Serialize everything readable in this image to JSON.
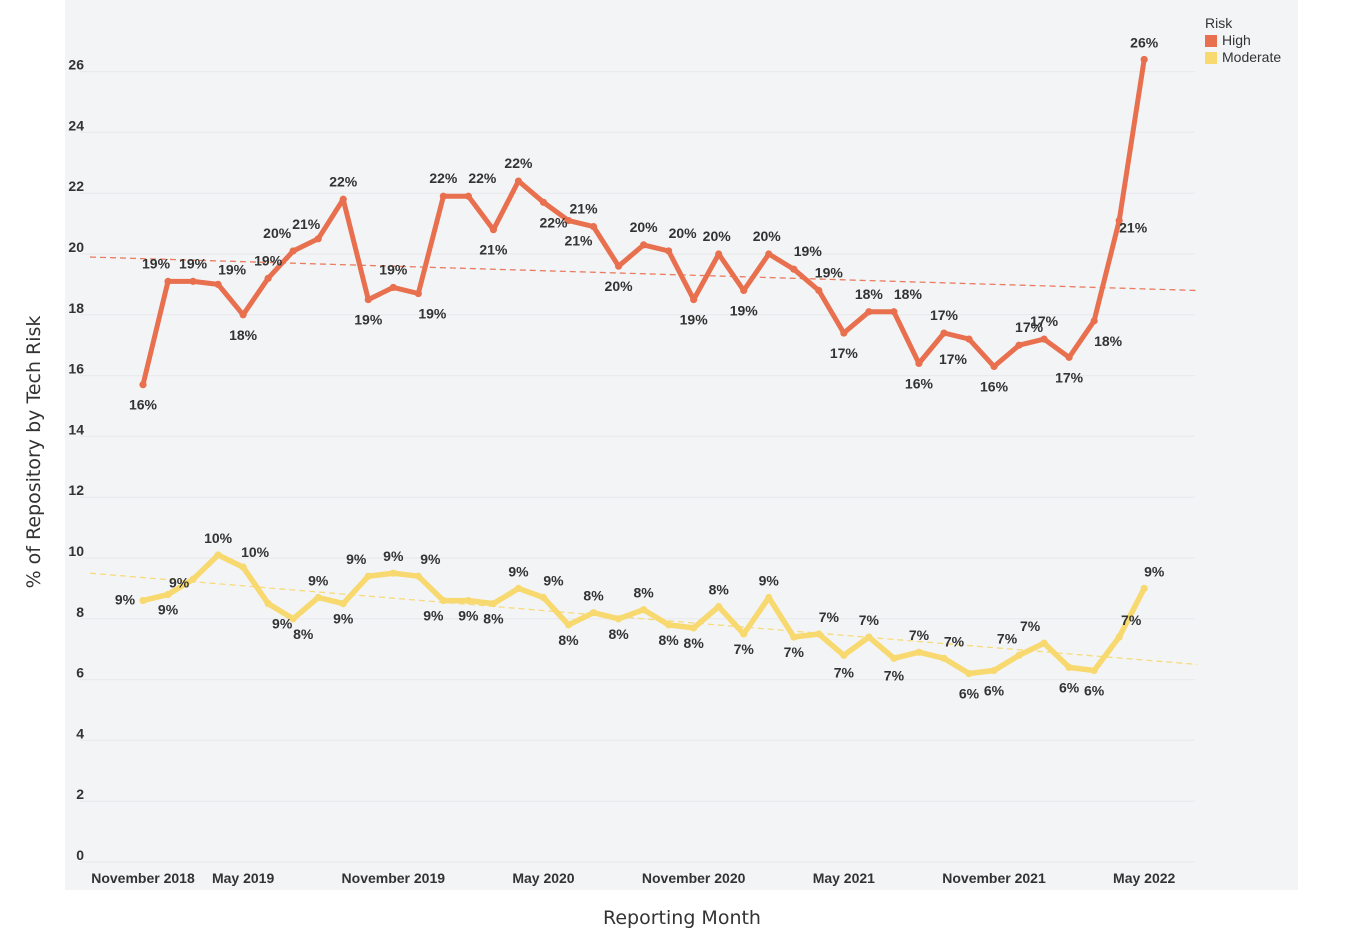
{
  "chart_data": {
    "type": "line",
    "xlabel": "Reporting Month",
    "ylabel": "% of Repository by Tech Risk",
    "ylim": [
      0,
      27
    ],
    "yticks": [
      0,
      2,
      4,
      6,
      8,
      10,
      12,
      14,
      16,
      18,
      20,
      22,
      24,
      26
    ],
    "xtick_labels": [
      {
        "label": "November 2018",
        "index": 0
      },
      {
        "label": "May 2019",
        "index": 4
      },
      {
        "label": "November 2019",
        "index": 10
      },
      {
        "label": "May 2020",
        "index": 16
      },
      {
        "label": "November 2020",
        "index": 22
      },
      {
        "label": "May 2021",
        "index": 28
      },
      {
        "label": "November 2021",
        "index": 34
      },
      {
        "label": "May 2022",
        "index": 40
      }
    ],
    "legend": {
      "title": "Risk",
      "position": "top-right",
      "entries": [
        {
          "name": "High",
          "color": "#e8704f"
        },
        {
          "name": "Moderate",
          "color": "#f7d96f"
        }
      ]
    },
    "series": [
      {
        "name": "High",
        "color": "#e8704f",
        "values": [
          15.7,
          19.1,
          19.1,
          19.0,
          18.0,
          19.2,
          20.1,
          20.5,
          21.8,
          18.5,
          18.9,
          18.7,
          21.9,
          21.9,
          20.8,
          22.4,
          21.7,
          21.1,
          20.9,
          19.6,
          20.3,
          20.1,
          18.5,
          20.0,
          18.8,
          20.0,
          19.5,
          18.8,
          17.4,
          18.1,
          18.1,
          16.4,
          17.4,
          17.2,
          16.3,
          17.0,
          17.2,
          16.6,
          17.8,
          21.1,
          26.4
        ],
        "labels": [
          "16%",
          "19%",
          "19%",
          "19%",
          "18%",
          "19%",
          "20%",
          "21%",
          "22%",
          "19%",
          "19%",
          "19%",
          "22%",
          "22%",
          "21%",
          "22%",
          "22%",
          "21%",
          "21%",
          "20%",
          "20%",
          "20%",
          "19%",
          "20%",
          "19%",
          "20%",
          "19%",
          "19%",
          "17%",
          "18%",
          "18%",
          "16%",
          "17%",
          "17%",
          "16%",
          "17%",
          "17%",
          "17%",
          "18%",
          "21%",
          "26%"
        ],
        "trend": [
          19.9,
          18.8
        ]
      },
      {
        "name": "Moderate",
        "color": "#f7d96f",
        "values": [
          8.6,
          8.8,
          9.3,
          10.1,
          9.7,
          8.5,
          8.0,
          8.7,
          8.5,
          9.4,
          9.5,
          9.4,
          8.6,
          8.6,
          8.5,
          9.0,
          8.7,
          7.8,
          8.2,
          8.0,
          8.3,
          7.8,
          7.7,
          8.4,
          7.5,
          8.7,
          7.4,
          7.5,
          6.8,
          7.4,
          6.7,
          6.9,
          6.7,
          6.2,
          6.3,
          6.8,
          7.2,
          6.4,
          6.3,
          7.4,
          9.0
        ],
        "labels": [
          "9%",
          "9%",
          "9%",
          "10%",
          "10%",
          "9%",
          "8%",
          "9%",
          "9%",
          "9%",
          "9%",
          "9%",
          "9%",
          "9%",
          "8%",
          "9%",
          "9%",
          "8%",
          "8%",
          "8%",
          "8%",
          "8%",
          "8%",
          "8%",
          "7%",
          "9%",
          "7%",
          "7%",
          "7%",
          "7%",
          "7%",
          "7%",
          "7%",
          "6%",
          "6%",
          "7%",
          "7%",
          "6%",
          "6%",
          "7%",
          "9%"
        ],
        "trend": [
          9.5,
          6.5
        ]
      }
    ]
  }
}
